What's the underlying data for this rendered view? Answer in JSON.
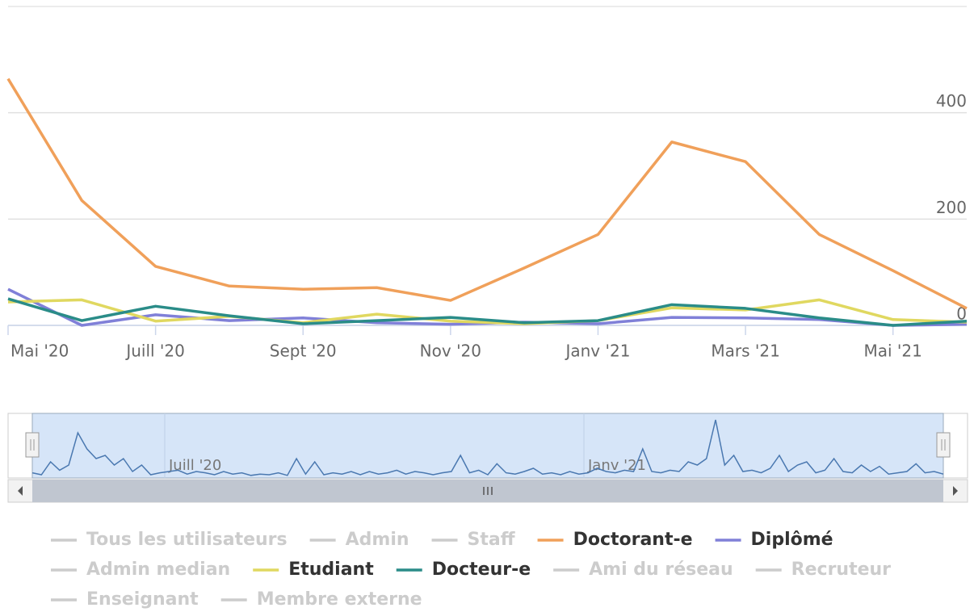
{
  "chart_data": {
    "type": "line",
    "x": [
      "2020-05",
      "2020-06",
      "2020-07",
      "2020-08",
      "2020-09",
      "2020-10",
      "2020-11",
      "2020-12",
      "2021-01",
      "2021-02",
      "2021-03",
      "2021-04",
      "2021-05",
      "2021-06"
    ],
    "xlim": [
      "2020-05",
      "2021-06"
    ],
    "xticks": [
      {
        "value": "2020-05",
        "label": "Mai '20"
      },
      {
        "value": "2020-07",
        "label": "Juill '20"
      },
      {
        "value": "2020-09",
        "label": "Sept '20"
      },
      {
        "value": "2020-11",
        "label": "Nov '20"
      },
      {
        "value": "2021-01",
        "label": "Janv '21"
      },
      {
        "value": "2021-03",
        "label": "Mars '21"
      },
      {
        "value": "2021-05",
        "label": "Mai '21"
      }
    ],
    "ylim": [
      0,
      600
    ],
    "yticks": [
      0,
      200,
      400
    ],
    "grid": true,
    "series": [
      {
        "name": "Tous les utilisateurs",
        "visible": false
      },
      {
        "name": "Admin",
        "visible": false
      },
      {
        "name": "Staff",
        "visible": false
      },
      {
        "name": "Doctorant-e",
        "visible": true,
        "color": "#f0a05a",
        "values": [
          464,
          235,
          111,
          74,
          68,
          71,
          47,
          108,
          171,
          345,
          308,
          171,
          103,
          32
        ]
      },
      {
        "name": "Diplômé",
        "visible": true,
        "color": "#8080d8",
        "values": [
          68,
          0,
          20,
          9,
          14,
          5,
          2,
          6,
          3,
          15,
          14,
          11,
          0,
          2
        ]
      },
      {
        "name": "Admin median",
        "visible": false
      },
      {
        "name": "Etudiant",
        "visible": true,
        "color": "#e0d860",
        "values": [
          44,
          48,
          8,
          17,
          5,
          21,
          8,
          3,
          9,
          33,
          29,
          48,
          11,
          6
        ]
      },
      {
        "name": "Docteur-e",
        "visible": true,
        "color": "#2a8c88",
        "values": [
          50,
          9,
          36,
          18,
          3,
          9,
          15,
          5,
          9,
          39,
          32,
          14,
          0,
          8
        ]
      },
      {
        "name": "Ami du réseau",
        "visible": false
      },
      {
        "name": "Recruteur",
        "visible": false
      },
      {
        "name": "Enseignant",
        "visible": false
      },
      {
        "name": "Membre externe",
        "visible": false
      }
    ],
    "navigator": {
      "color": "#4a78b0",
      "ylim": [
        0,
        100
      ],
      "values": [
        8,
        5,
        25,
        12,
        20,
        70,
        45,
        30,
        35,
        20,
        30,
        10,
        20,
        5,
        8,
        10,
        12,
        6,
        10,
        8,
        5,
        10,
        6,
        8,
        4,
        6,
        5,
        8,
        4,
        30,
        6,
        25,
        5,
        8,
        6,
        10,
        5,
        10,
        6,
        8,
        12,
        6,
        10,
        8,
        5,
        8,
        10,
        35,
        8,
        12,
        5,
        22,
        8,
        6,
        10,
        15,
        6,
        8,
        5,
        10,
        6,
        8,
        15,
        10,
        8,
        12,
        10,
        45,
        10,
        8,
        12,
        10,
        25,
        20,
        30,
        90,
        20,
        35,
        10,
        12,
        8,
        15,
        35,
        10,
        20,
        25,
        8,
        12,
        30,
        10,
        8,
        20,
        10,
        18,
        6,
        8,
        10,
        22,
        8,
        10,
        6
      ]
    }
  }
}
